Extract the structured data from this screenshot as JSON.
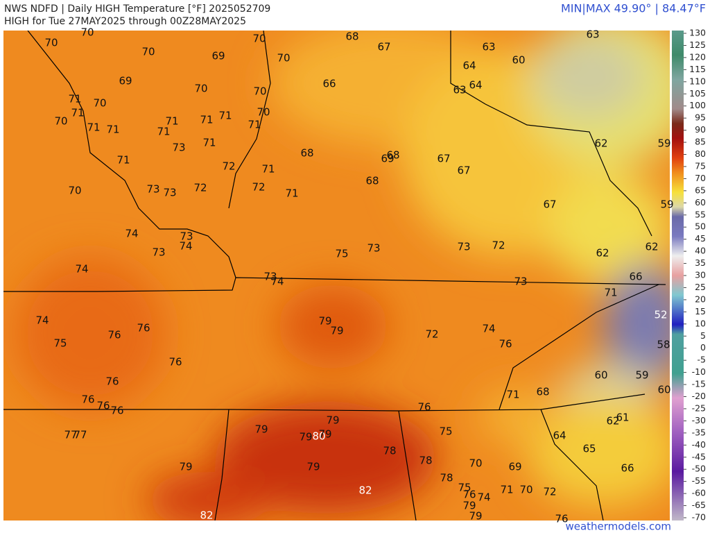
{
  "header": {
    "title": "NWS NDFD | Daily HIGH Temperature [°F]  2025052709",
    "subtitle": "HIGH for Tue 27MAY2025 through 00Z28MAY2025",
    "minmax": "MIN|MAX 49.90°  |  84.47°F"
  },
  "watermark": "weathermodels.com",
  "colorbar": {
    "ticks": [
      130,
      125,
      120,
      115,
      110,
      105,
      100,
      95,
      90,
      85,
      80,
      75,
      70,
      65,
      60,
      55,
      50,
      45,
      40,
      35,
      30,
      25,
      20,
      15,
      10,
      5,
      0,
      -5,
      -10,
      -15,
      -20,
      -25,
      -30,
      -35,
      -40,
      -45,
      -50,
      -55,
      -60,
      -65,
      -70
    ]
  },
  "labels": [
    70,
    70,
    70,
    69,
    70,
    70,
    68,
    67,
    63,
    63,
    64,
    60,
    69,
    70,
    70,
    66,
    63,
    64,
    71,
    70,
    71,
    70,
    71,
    71,
    71,
    71,
    71,
    70,
    71,
    71,
    73,
    71,
    62,
    59,
    68,
    69,
    68,
    67,
    67,
    71,
    72,
    71,
    70,
    73,
    73,
    72,
    72,
    71,
    68,
    67,
    59,
    74,
    73,
    74,
    73,
    75,
    73,
    73,
    72,
    62,
    62,
    74,
    73,
    74,
    66,
    73,
    71,
    74,
    76,
    79,
    79,
    72,
    74,
    76,
    52,
    75,
    76,
    58,
    76,
    60,
    59,
    76,
    71,
    68,
    60,
    76,
    76,
    76,
    76,
    79,
    61,
    62,
    77,
    77,
    79,
    79,
    80,
    79,
    75,
    64,
    65,
    78,
    78,
    70,
    69,
    66,
    79,
    79,
    78,
    75,
    82,
    76,
    74,
    71,
    70,
    72,
    79,
    79,
    82,
    76
  ]
}
